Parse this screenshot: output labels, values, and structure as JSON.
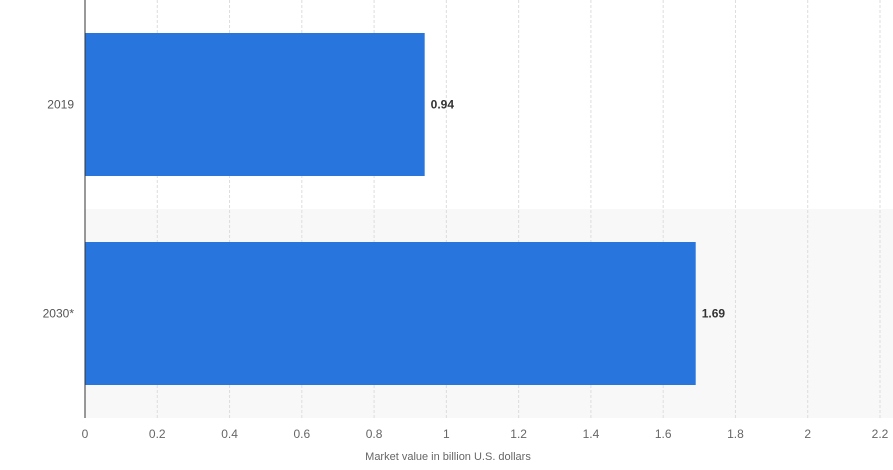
{
  "chart_data": {
    "type": "bar",
    "orientation": "horizontal",
    "categories": [
      "2019",
      "2030*"
    ],
    "values": [
      0.94,
      1.69
    ],
    "value_labels": [
      "0.94",
      "1.69"
    ],
    "xlabel": "Market value in billion U.S. dollars",
    "ylabel": "",
    "xlim": [
      0,
      2.2
    ],
    "x_ticks": [
      0,
      0.2,
      0.4,
      0.6,
      0.8,
      1,
      1.2,
      1.4,
      1.6,
      1.8,
      2,
      2.2
    ],
    "x_tick_labels": [
      "0",
      "0.2",
      "0.4",
      "0.6",
      "0.8",
      "1",
      "1.2",
      "1.4",
      "1.6",
      "1.8",
      "2",
      "2.2"
    ],
    "grid": true,
    "bar_color": "#2876dd",
    "alternate_band_color": "#f8f8f8"
  }
}
